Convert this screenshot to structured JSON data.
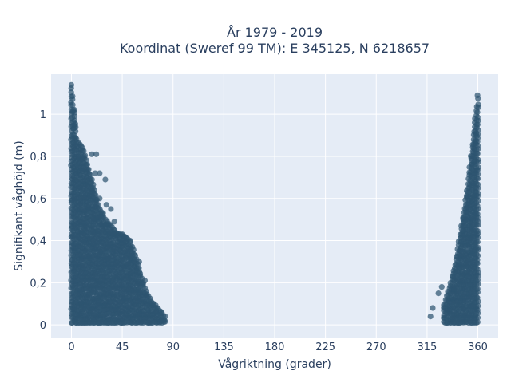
{
  "chart_data": {
    "type": "scatter",
    "title_line1": "År 1979 - 2019",
    "title_line2": "Koordinat (Sweref 99 TM): E 345125, N 6218657",
    "xlabel": "Vågriktning (grader)",
    "ylabel": "Signifikant våghöjd (m)",
    "xlim": [
      -18,
      378
    ],
    "ylim": [
      -0.06,
      1.19
    ],
    "x_ticks": [
      0,
      45,
      90,
      135,
      180,
      225,
      270,
      315,
      360
    ],
    "x_tick_labels": [
      "0",
      "45",
      "90",
      "135",
      "180",
      "225",
      "270",
      "315",
      "360"
    ],
    "y_ticks": [
      0,
      0.2,
      0.4,
      0.6,
      0.8,
      1
    ],
    "y_tick_labels": [
      "0",
      "0,2",
      "0,4",
      "0,6",
      "0,8",
      "1"
    ],
    "grid": true,
    "background_color": "#e5ecf6",
    "marker_color": "#2e5570",
    "envelope_left": [
      [
        0,
        1.14
      ],
      [
        2,
        1.05
      ],
      [
        5,
        0.87
      ],
      [
        10,
        0.84
      ],
      [
        15,
        0.75
      ],
      [
        20,
        0.65
      ],
      [
        25,
        0.55
      ],
      [
        30,
        0.5
      ],
      [
        40,
        0.44
      ],
      [
        50,
        0.41
      ],
      [
        55,
        0.36
      ],
      [
        60,
        0.27
      ],
      [
        65,
        0.17
      ],
      [
        70,
        0.12
      ],
      [
        78,
        0.07
      ],
      [
        83,
        0.04
      ]
    ],
    "envelope_right": [
      [
        330,
        0.1
      ],
      [
        335,
        0.18
      ],
      [
        340,
        0.3
      ],
      [
        345,
        0.45
      ],
      [
        350,
        0.62
      ],
      [
        355,
        0.85
      ],
      [
        358,
        1.0
      ],
      [
        360,
        1.09
      ]
    ],
    "outliers": [
      [
        18,
        0.81
      ],
      [
        22,
        0.81
      ],
      [
        21,
        0.72
      ],
      [
        25,
        0.72
      ],
      [
        30,
        0.69
      ],
      [
        18,
        0.64
      ],
      [
        25,
        0.6
      ],
      [
        31,
        0.57
      ],
      [
        35,
        0.55
      ],
      [
        28,
        0.53
      ],
      [
        38,
        0.49
      ],
      [
        45,
        0.43
      ],
      [
        47,
        0.42
      ],
      [
        52,
        0.4
      ],
      [
        60,
        0.3
      ],
      [
        65,
        0.21
      ],
      [
        75,
        0.06
      ],
      [
        80,
        0.02
      ],
      [
        325,
        0.15
      ],
      [
        320,
        0.08
      ],
      [
        318,
        0.04
      ],
      [
        328,
        0.18
      ],
      [
        347,
        0.5
      ]
    ],
    "y_min_value": 0.01
  }
}
